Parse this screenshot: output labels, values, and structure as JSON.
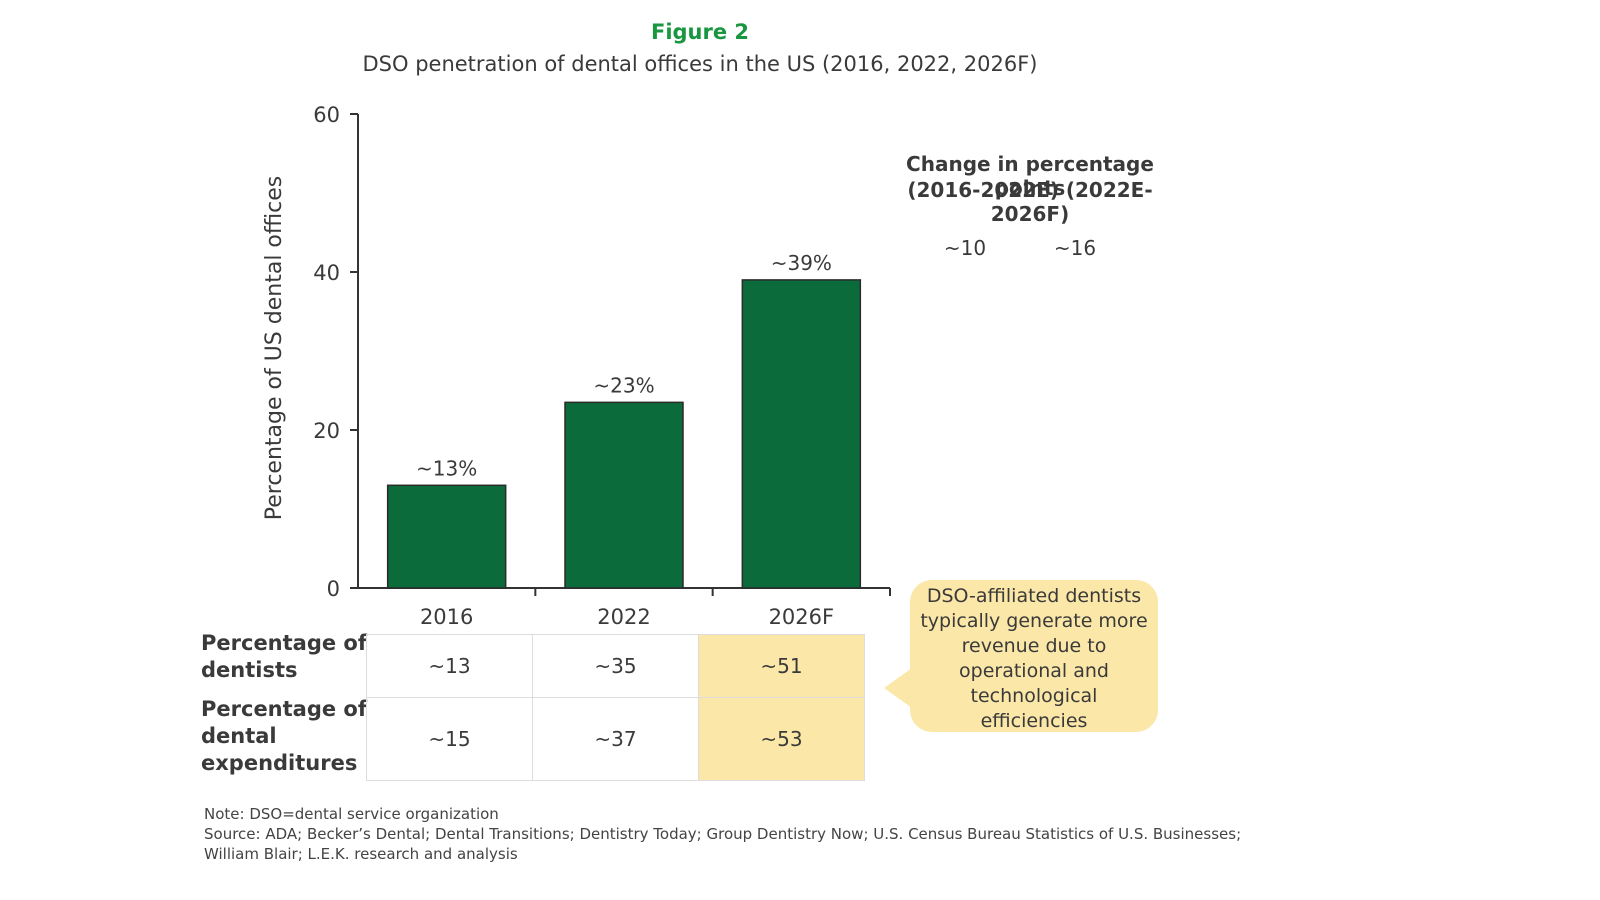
{
  "figure": {
    "label": "Figure 2",
    "title": "DSO penetration of dental offices in the US (2016, 2022, 2026F)"
  },
  "chart_data": {
    "type": "bar",
    "categories": [
      "2016",
      "2022",
      "2026F"
    ],
    "values": [
      13,
      23.5,
      39
    ],
    "data_labels": [
      "~13%",
      "~23%",
      "~39%"
    ],
    "ylabel": "Percentage of US dental offices",
    "ylim": [
      0,
      60
    ],
    "yticks": [
      0,
      20,
      40,
      60
    ],
    "bar_color": "#0b6b3a",
    "grid": false
  },
  "change": {
    "title_line1": "Change in percentage points",
    "title_line2": "(2016-2022E) (2022E-2026F)",
    "values": [
      "~10",
      "~16"
    ]
  },
  "metrics_table": {
    "rows": [
      {
        "label_lines": [
          "Percentage of",
          "dentists"
        ],
        "values": [
          "~13",
          "~35",
          "~51"
        ]
      },
      {
        "label_lines": [
          "Percentage of",
          "dental",
          "expenditures"
        ],
        "values": [
          "~15",
          "~37",
          "~53"
        ]
      }
    ],
    "highlight_color": "#fbe7a8"
  },
  "callout": {
    "lines": [
      "DSO-affiliated dentists",
      "typically generate more",
      "revenue due to",
      "operational and",
      "technological",
      "efficiencies"
    ]
  },
  "notes": {
    "note": "Note: DSO=dental service organization",
    "source_line1": "Source: ADA; Becker’s Dental; Dental Transitions; Dentistry Today; Group Dentistry Now; U.S. Census Bureau Statistics of U.S. Businesses;",
    "source_line2": "William Blair; L.E.K. research and analysis"
  }
}
